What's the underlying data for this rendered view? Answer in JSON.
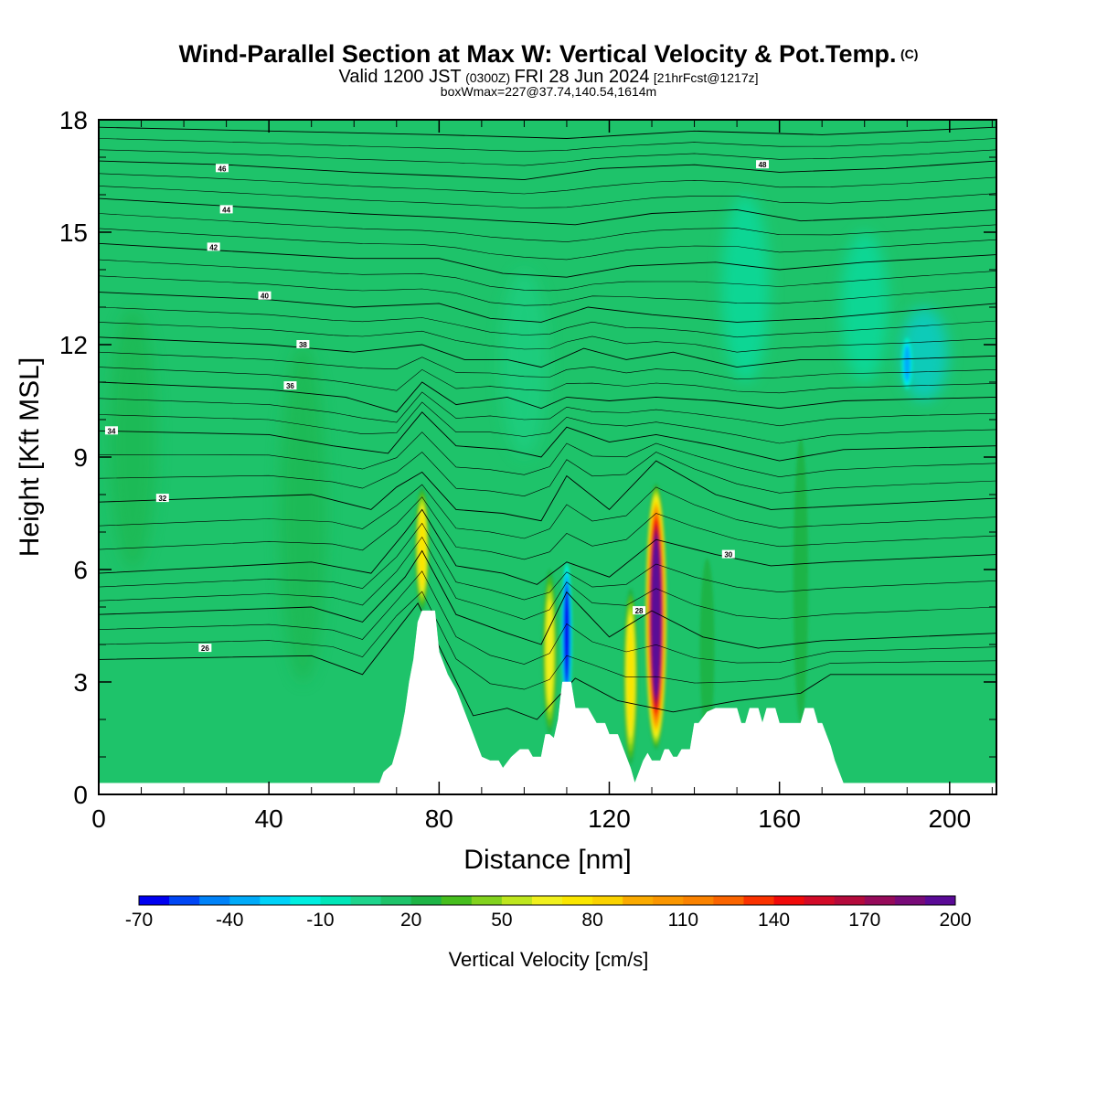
{
  "header": {
    "title": "Wind-Parallel Section at Max W: Vertical Velocity & Pot.Temp.",
    "title_mark": "(C)",
    "valid_prefix": "Valid 1200 JST",
    "valid_zulu": "(0300Z)",
    "valid_date": "FRI 28 Jun 2024",
    "valid_fcst": "[21hrFcst@1217z]",
    "box_info": "boxWmax=227@37.74,140.54,1614m"
  },
  "chart_data": {
    "type": "heatmap",
    "xlabel": "Distance [nm]",
    "ylabel": "Height [Kft MSL]",
    "xlim": [
      0,
      211
    ],
    "ylim": [
      0,
      18
    ],
    "x_ticks": [
      "0",
      "40",
      "80",
      "120",
      "160",
      "200"
    ],
    "x_tick_values": [
      0,
      40,
      80,
      120,
      160,
      200
    ],
    "y_ticks": [
      "0",
      "3",
      "6",
      "9",
      "12",
      "15",
      "18"
    ],
    "y_tick_values": [
      0,
      3,
      6,
      9,
      12,
      15,
      18
    ],
    "background_color": "#1ec36a",
    "colorbar": {
      "label": "Vertical Velocity [cm/s]",
      "tick_labels": [
        "-70",
        "-40",
        "-10",
        "20",
        "50",
        "80",
        "110",
        "140",
        "170",
        "200"
      ],
      "levels": [
        -70,
        -60,
        -50,
        -40,
        -30,
        -20,
        -10,
        0,
        10,
        20,
        30,
        40,
        50,
        60,
        70,
        80,
        90,
        100,
        110,
        120,
        130,
        140,
        150,
        160,
        170,
        180,
        190,
        200
      ],
      "colors": [
        "#0000f0",
        "#0046f5",
        "#0082f8",
        "#00aaf8",
        "#00d2f8",
        "#00eee0",
        "#00e6b8",
        "#1ed48c",
        "#1ec36a",
        "#1eb446",
        "#46be1e",
        "#82d21e",
        "#bee61e",
        "#f0f01e",
        "#fae600",
        "#fad200",
        "#faaa00",
        "#fa9600",
        "#fa8200",
        "#fa6400",
        "#fa3200",
        "#f00a0a",
        "#d20a28",
        "#b40a3c",
        "#960a5a",
        "#780a78",
        "#5a0a96"
      ]
    },
    "terrain": [
      [
        0,
        0.3
      ],
      [
        55,
        0.3
      ],
      [
        58,
        0.3
      ],
      [
        62,
        0.3
      ],
      [
        66,
        0.3
      ],
      [
        67,
        0.6
      ],
      [
        69,
        0.8
      ],
      [
        70,
        1.2
      ],
      [
        71,
        1.6
      ],
      [
        72,
        2.2
      ],
      [
        73,
        3.0
      ],
      [
        74,
        3.6
      ],
      [
        75,
        4.6
      ],
      [
        76,
        4.9
      ],
      [
        79,
        4.9
      ],
      [
        80,
        3.8
      ],
      [
        82,
        3.2
      ],
      [
        84,
        2.8
      ],
      [
        86,
        2.2
      ],
      [
        88,
        1.6
      ],
      [
        89,
        1.3
      ],
      [
        90,
        1.0
      ],
      [
        92,
        0.9
      ],
      [
        94,
        0.9
      ],
      [
        95,
        0.7
      ],
      [
        97,
        1.0
      ],
      [
        99,
        1.2
      ],
      [
        101,
        1.2
      ],
      [
        102,
        1.0
      ],
      [
        104,
        1.0
      ],
      [
        105,
        1.6
      ],
      [
        106,
        1.6
      ],
      [
        107,
        1.5
      ],
      [
        108,
        2.0
      ],
      [
        109,
        3.0
      ],
      [
        111,
        3.0
      ],
      [
        112,
        2.3
      ],
      [
        113,
        2.3
      ],
      [
        115,
        2.3
      ],
      [
        117,
        1.9
      ],
      [
        119,
        1.9
      ],
      [
        120,
        1.6
      ],
      [
        122,
        1.6
      ],
      [
        124,
        1.0
      ],
      [
        125,
        0.7
      ],
      [
        126,
        0.3
      ],
      [
        127,
        0.6
      ],
      [
        128,
        0.9
      ],
      [
        129,
        1.1
      ],
      [
        130,
        0.9
      ],
      [
        132,
        0.9
      ],
      [
        133,
        1.2
      ],
      [
        134,
        1.2
      ],
      [
        135,
        1.0
      ],
      [
        136,
        1.0
      ],
      [
        137,
        1.2
      ],
      [
        138,
        1.2
      ],
      [
        139,
        1.2
      ],
      [
        140,
        1.9
      ],
      [
        141,
        1.9
      ],
      [
        143,
        2.2
      ],
      [
        145,
        2.3
      ],
      [
        150,
        2.3
      ],
      [
        151,
        1.9
      ],
      [
        152,
        1.9
      ],
      [
        153,
        2.3
      ],
      [
        155,
        2.3
      ],
      [
        156,
        1.9
      ],
      [
        157,
        2.3
      ],
      [
        159,
        2.3
      ],
      [
        160,
        1.9
      ],
      [
        165,
        1.9
      ],
      [
        166,
        2.3
      ],
      [
        168,
        2.3
      ],
      [
        169,
        1.9
      ],
      [
        170,
        1.9
      ],
      [
        171,
        1.6
      ],
      [
        172,
        1.3
      ],
      [
        173,
        0.9
      ],
      [
        174,
        0.6
      ],
      [
        175,
        0.3
      ],
      [
        211,
        0.3
      ]
    ],
    "vertical_velocity_features": [
      {
        "x": 76,
        "base": 4.9,
        "top": 8.2,
        "w_peak": 75,
        "sign": "up"
      },
      {
        "x": 106,
        "base": 1.6,
        "top": 6.0,
        "w_peak": 65,
        "sign": "up"
      },
      {
        "x": 110,
        "base": 2.3,
        "top": 6.2,
        "w_peak": -70,
        "sign": "down"
      },
      {
        "x": 125,
        "base": 0.8,
        "top": 5.5,
        "w_peak": 70,
        "sign": "up"
      },
      {
        "x": 131,
        "base": 1.2,
        "top": 8.3,
        "w_peak": 200,
        "sign": "up"
      },
      {
        "x": 143,
        "base": 1.5,
        "top": 6.3,
        "w_peak": 25,
        "sign": "up"
      },
      {
        "x": 165,
        "base": 1.9,
        "top": 9.5,
        "w_peak": 20,
        "sign": "up"
      },
      {
        "x": 190,
        "base": 10.8,
        "top": 12.2,
        "w_peak": -40,
        "sign": "down"
      }
    ],
    "theta_contours": [
      {
        "label": "26",
        "label_x": 25,
        "label_y": 3.9,
        "points": [
          [
            0,
            3.6
          ],
          [
            50,
            3.7
          ],
          [
            62,
            3.2
          ],
          [
            75,
            5.1
          ],
          [
            88,
            2.1
          ],
          [
            96,
            2.3
          ],
          [
            103,
            2.0
          ],
          [
            112,
            3.1
          ],
          [
            122,
            2.5
          ],
          [
            135,
            2.2
          ],
          [
            150,
            2.5
          ],
          [
            165,
            2.7
          ],
          [
            172,
            3.2
          ],
          [
            211,
            3.2
          ]
        ]
      },
      {
        "label": "28",
        "label_x": 127,
        "label_y": 4.9,
        "points": [
          [
            0,
            4.8
          ],
          [
            50,
            5.0
          ],
          [
            62,
            4.6
          ],
          [
            72,
            5.8
          ],
          [
            76,
            6.5
          ],
          [
            84,
            4.8
          ],
          [
            96,
            4.3
          ],
          [
            104,
            4.0
          ],
          [
            110,
            5.4
          ],
          [
            120,
            4.2
          ],
          [
            130,
            4.9
          ],
          [
            142,
            4.2
          ],
          [
            155,
            3.9
          ],
          [
            170,
            4.1
          ],
          [
            211,
            4.3
          ]
        ]
      },
      {
        "label": "30",
        "label_x": 148,
        "label_y": 6.4,
        "points": [
          [
            0,
            5.9
          ],
          [
            50,
            6.2
          ],
          [
            64,
            5.9
          ],
          [
            72,
            7.0
          ],
          [
            76,
            7.6
          ],
          [
            84,
            6.1
          ],
          [
            95,
            5.9
          ],
          [
            103,
            5.6
          ],
          [
            110,
            6.2
          ],
          [
            120,
            5.8
          ],
          [
            131,
            6.8
          ],
          [
            145,
            6.4
          ],
          [
            158,
            6.1
          ],
          [
            172,
            6.2
          ],
          [
            211,
            6.4
          ]
        ]
      },
      {
        "label": "32",
        "label_x": 15,
        "label_y": 7.9,
        "points": [
          [
            0,
            7.8
          ],
          [
            50,
            8.0
          ],
          [
            64,
            7.6
          ],
          [
            70,
            8.2
          ],
          [
            76,
            8.6
          ],
          [
            84,
            7.6
          ],
          [
            95,
            7.5
          ],
          [
            104,
            7.3
          ],
          [
            110,
            8.5
          ],
          [
            120,
            7.6
          ],
          [
            131,
            8.9
          ],
          [
            145,
            8.0
          ],
          [
            158,
            7.6
          ],
          [
            175,
            7.7
          ],
          [
            211,
            7.9
          ]
        ]
      },
      {
        "label": "34",
        "label_x": 3,
        "label_y": 9.7,
        "points": [
          [
            0,
            9.7
          ],
          [
            40,
            9.6
          ],
          [
            55,
            9.3
          ],
          [
            68,
            9.1
          ],
          [
            76,
            10.2
          ],
          [
            84,
            9.3
          ],
          [
            96,
            9.2
          ],
          [
            104,
            9.0
          ],
          [
            110,
            9.8
          ],
          [
            120,
            9.4
          ],
          [
            131,
            9.6
          ],
          [
            145,
            9.3
          ],
          [
            160,
            8.9
          ],
          [
            175,
            9.2
          ],
          [
            211,
            9.3
          ]
        ]
      },
      {
        "label": "36",
        "label_x": 45,
        "label_y": 10.9,
        "points": [
          [
            0,
            11.0
          ],
          [
            40,
            10.8
          ],
          [
            58,
            10.6
          ],
          [
            70,
            10.2
          ],
          [
            76,
            11.0
          ],
          [
            84,
            10.4
          ],
          [
            96,
            10.6
          ],
          [
            104,
            10.3
          ],
          [
            110,
            10.6
          ],
          [
            120,
            10.5
          ],
          [
            131,
            10.6
          ],
          [
            145,
            10.5
          ],
          [
            160,
            10.3
          ],
          [
            175,
            10.5
          ],
          [
            211,
            10.6
          ]
        ]
      },
      {
        "label": "38",
        "label_x": 48,
        "label_y": 12.0,
        "points": [
          [
            0,
            12.2
          ],
          [
            40,
            12.0
          ],
          [
            60,
            11.8
          ],
          [
            76,
            12.0
          ],
          [
            86,
            11.6
          ],
          [
            96,
            11.6
          ],
          [
            104,
            11.4
          ],
          [
            114,
            11.9
          ],
          [
            124,
            11.6
          ],
          [
            135,
            11.8
          ],
          [
            150,
            11.4
          ],
          [
            165,
            11.6
          ],
          [
            185,
            11.6
          ],
          [
            211,
            11.7
          ]
        ]
      },
      {
        "label": "40",
        "label_x": 39,
        "label_y": 13.3,
        "points": [
          [
            0,
            13.4
          ],
          [
            40,
            13.2
          ],
          [
            60,
            13.0
          ],
          [
            80,
            13.1
          ],
          [
            92,
            12.7
          ],
          [
            104,
            12.6
          ],
          [
            115,
            13.0
          ],
          [
            130,
            12.8
          ],
          [
            150,
            12.6
          ],
          [
            170,
            12.7
          ],
          [
            190,
            12.9
          ],
          [
            211,
            13.1
          ]
        ]
      },
      {
        "label": "42",
        "label_x": 27,
        "label_y": 14.6,
        "points": [
          [
            0,
            14.7
          ],
          [
            30,
            14.5
          ],
          [
            60,
            14.3
          ],
          [
            80,
            14.3
          ],
          [
            95,
            13.9
          ],
          [
            110,
            13.8
          ],
          [
            125,
            14.1
          ],
          [
            145,
            14.2
          ],
          [
            160,
            14.0
          ],
          [
            180,
            14.2
          ],
          [
            211,
            14.4
          ]
        ]
      },
      {
        "label": "44",
        "label_x": 30,
        "label_y": 15.6,
        "points": [
          [
            0,
            15.9
          ],
          [
            30,
            15.7
          ],
          [
            60,
            15.5
          ],
          [
            80,
            15.4
          ],
          [
            95,
            15.3
          ],
          [
            112,
            15.2
          ],
          [
            130,
            15.5
          ],
          [
            150,
            15.6
          ],
          [
            165,
            15.3
          ],
          [
            185,
            15.4
          ],
          [
            211,
            15.6
          ]
        ]
      },
      {
        "label": "46",
        "label_x": 29,
        "label_y": 16.7,
        "points": [
          [
            0,
            16.9
          ],
          [
            30,
            16.8
          ],
          [
            60,
            16.6
          ],
          [
            82,
            16.5
          ],
          [
            100,
            16.4
          ],
          [
            118,
            16.7
          ],
          [
            140,
            16.8
          ],
          [
            160,
            16.6
          ],
          [
            185,
            16.7
          ],
          [
            211,
            16.9
          ]
        ]
      },
      {
        "label": "48",
        "label_x": 156,
        "label_y": 16.8,
        "points": [
          [
            0,
            17.8
          ],
          [
            40,
            17.7
          ],
          [
            80,
            17.6
          ],
          [
            110,
            17.5
          ],
          [
            140,
            17.7
          ],
          [
            170,
            17.6
          ],
          [
            211,
            17.8
          ]
        ]
      }
    ]
  }
}
